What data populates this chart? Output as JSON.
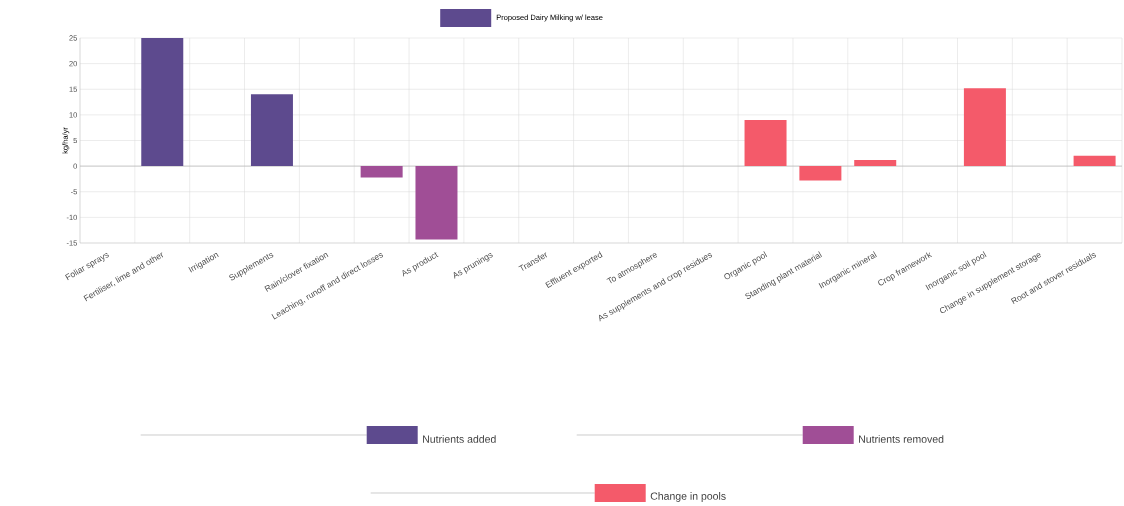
{
  "chart_data": {
    "type": "bar",
    "legend_title": "Proposed Dairy Milking w/ lease",
    "ylabel": "kg/ha/yr",
    "categories": [
      "Foliar sprays",
      "Fertiliser, lime and other",
      "Irrigation",
      "Supplements",
      "Rain/clover fixation",
      "Leaching, runoff and direct losses",
      "As product",
      "As prunings",
      "Transfer",
      "Effluent exported",
      "To atmosphere",
      "As supplements and crop residues",
      "Organic pool",
      "Standing plant material",
      "Inorganic mineral",
      "Crop framework",
      "Inorganic soil pool",
      "Change in supplement storage",
      "Root and stover residuals"
    ],
    "series": [
      {
        "name": "Nutrients added",
        "color": "#5d4a8e",
        "values": [
          null,
          25,
          null,
          14,
          null,
          null,
          null,
          null,
          null,
          null,
          null,
          null,
          null,
          null,
          null,
          null,
          null,
          null,
          null
        ]
      },
      {
        "name": "Nutrients removed",
        "color": "#a04e96",
        "values": [
          null,
          null,
          null,
          null,
          null,
          -2.2,
          -14.3,
          null,
          null,
          null,
          null,
          null,
          null,
          null,
          null,
          null,
          null,
          null,
          null
        ]
      },
      {
        "name": "Change in pools",
        "color": "#f45a6a",
        "values": [
          null,
          null,
          null,
          null,
          null,
          null,
          null,
          null,
          null,
          null,
          null,
          null,
          9,
          -2.8,
          1.2,
          null,
          15.2,
          null,
          2
        ]
      }
    ],
    "ylim": [
      -15,
      25
    ],
    "yticks": [
      -15,
      -10,
      -5,
      0,
      5,
      10,
      15,
      20,
      25
    ],
    "grid": true,
    "legend": "bottom"
  }
}
